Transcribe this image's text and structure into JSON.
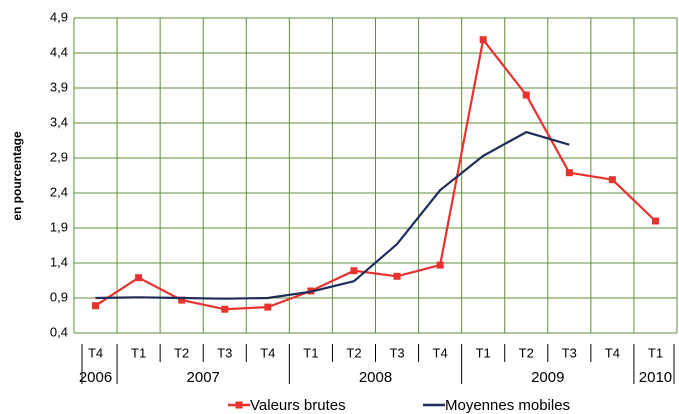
{
  "chart_data": {
    "type": "line",
    "y_label": "en pourcentage",
    "categories": [
      "T4",
      "T1",
      "T2",
      "T3",
      "T4",
      "T1",
      "T2",
      "T3",
      "T4",
      "T1",
      "T2",
      "T3",
      "T4",
      "T1"
    ],
    "groups": [
      {
        "label": "2006",
        "count": 1
      },
      {
        "label": "2007",
        "count": 4
      },
      {
        "label": "2008",
        "count": 4
      },
      {
        "label": "2009",
        "count": 4
      },
      {
        "label": "2010",
        "count": 1
      }
    ],
    "series": [
      {
        "name": "Valeurs brutes",
        "color": "#e8322f",
        "marker": "square",
        "values": [
          0.79,
          1.19,
          0.87,
          0.74,
          0.77,
          1.0,
          1.29,
          1.21,
          1.37,
          4.59,
          3.8,
          2.69,
          2.59,
          2.0
        ]
      },
      {
        "name": "Moyennes mobiles",
        "color": "#1f2d5a",
        "marker": "none",
        "values": [
          0.9,
          0.91,
          0.9,
          0.89,
          0.9,
          0.99,
          1.14,
          1.67,
          2.44,
          2.93,
          3.27,
          3.09,
          null,
          null
        ]
      }
    ],
    "ylim": [
      0.4,
      4.9
    ],
    "yticks": [
      {
        "value": 0.4,
        "label": "0,4"
      },
      {
        "value": 0.9,
        "label": "0,9"
      },
      {
        "value": 1.4,
        "label": "1,4"
      },
      {
        "value": 1.9,
        "label": "1,9"
      },
      {
        "value": 2.4,
        "label": "2,4"
      },
      {
        "value": 2.9,
        "label": "2,9"
      },
      {
        "value": 3.4,
        "label": "3,4"
      },
      {
        "value": 3.9,
        "label": "3,9"
      },
      {
        "value": 4.4,
        "label": "4,4"
      },
      {
        "value": 4.9,
        "label": "4,9"
      }
    ],
    "grid": true,
    "grid_color": "#5f8f3a",
    "legend": "bottom"
  }
}
